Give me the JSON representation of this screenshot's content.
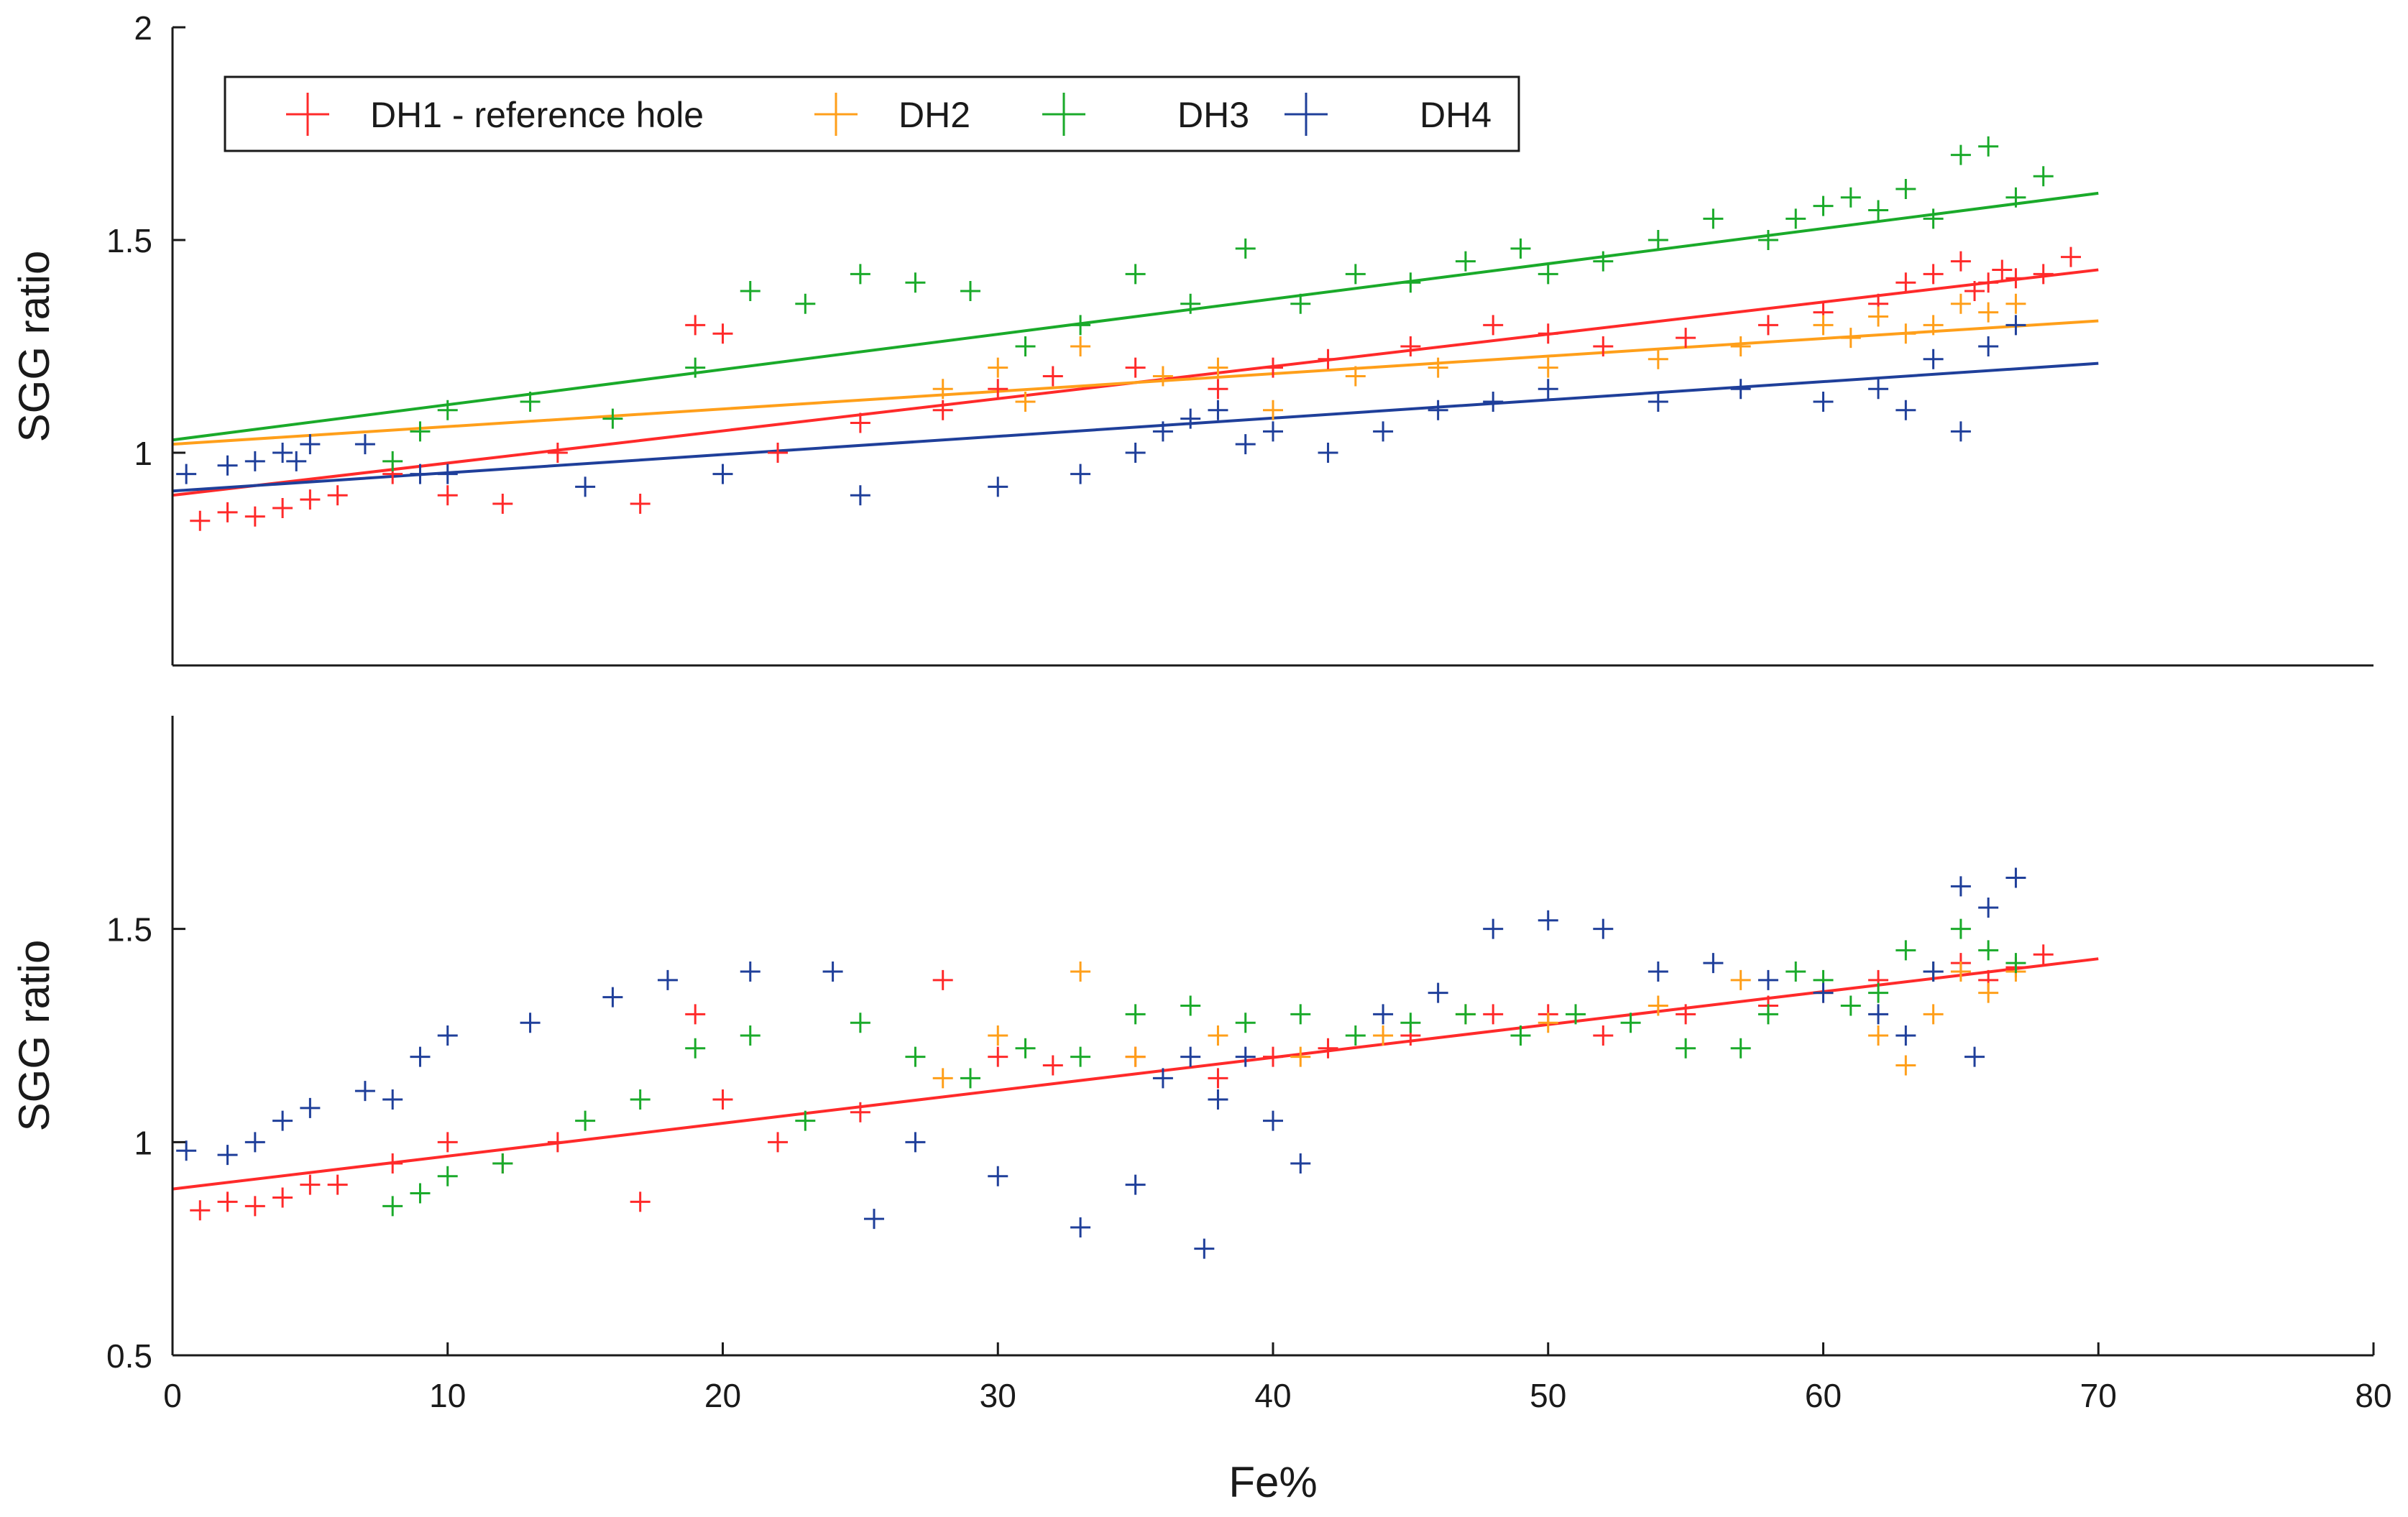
{
  "chart_data": [
    {
      "type": "scatter",
      "panel": "top",
      "xlabel": "",
      "ylabel": "SGG ratio",
      "xlim": [
        0,
        80
      ],
      "ylim": [
        0.5,
        2
      ],
      "yticks": [
        "1",
        "1.5",
        "2"
      ],
      "grid": false,
      "legend": {
        "placement": "top-left",
        "entries": [
          "DH1 - reference hole",
          "DH2",
          "DH3",
          "DH4"
        ]
      },
      "series": [
        {
          "name": "DH1 - reference hole",
          "color": "#ff2a2a",
          "marker": "plus",
          "points": [
            [
              1,
              0.84
            ],
            [
              2,
              0.86
            ],
            [
              3,
              0.85
            ],
            [
              4,
              0.87
            ],
            [
              5,
              0.89
            ],
            [
              6,
              0.9
            ],
            [
              8,
              0.95
            ],
            [
              10,
              0.9
            ],
            [
              12,
              0.88
            ],
            [
              14,
              1.0
            ],
            [
              17,
              0.88
            ],
            [
              19,
              1.3
            ],
            [
              20,
              1.28
            ],
            [
              22,
              1.0
            ],
            [
              25,
              1.07
            ],
            [
              28,
              1.1
            ],
            [
              30,
              1.15
            ],
            [
              32,
              1.18
            ],
            [
              35,
              1.2
            ],
            [
              38,
              1.15
            ],
            [
              40,
              1.2
            ],
            [
              42,
              1.22
            ],
            [
              45,
              1.25
            ],
            [
              48,
              1.3
            ],
            [
              50,
              1.28
            ],
            [
              52,
              1.25
            ],
            [
              55,
              1.27
            ],
            [
              58,
              1.3
            ],
            [
              60,
              1.33
            ],
            [
              62,
              1.35
            ],
            [
              63,
              1.4
            ],
            [
              64,
              1.42
            ],
            [
              65,
              1.45
            ],
            [
              65.5,
              1.38
            ],
            [
              66,
              1.4
            ],
            [
              66.5,
              1.43
            ],
            [
              67,
              1.41
            ],
            [
              68,
              1.42
            ],
            [
              69,
              1.46
            ]
          ],
          "trend": [
            [
              0,
              0.9
            ],
            [
              70,
              1.43
            ]
          ]
        },
        {
          "name": "DH2",
          "color": "#ff9f1a",
          "marker": "plus",
          "points": [
            [
              28,
              1.15
            ],
            [
              30,
              1.2
            ],
            [
              31,
              1.12
            ],
            [
              33,
              1.25
            ],
            [
              36,
              1.18
            ],
            [
              38,
              1.2
            ],
            [
              40,
              1.1
            ],
            [
              43,
              1.18
            ],
            [
              46,
              1.2
            ],
            [
              50,
              1.2
            ],
            [
              54,
              1.22
            ],
            [
              57,
              1.25
            ],
            [
              60,
              1.3
            ],
            [
              61,
              1.27
            ],
            [
              62,
              1.32
            ],
            [
              63,
              1.28
            ],
            [
              64,
              1.3
            ],
            [
              65,
              1.35
            ],
            [
              66,
              1.33
            ],
            [
              67,
              1.35
            ]
          ],
          "trend": [
            [
              0,
              1.02
            ],
            [
              70,
              1.31
            ]
          ]
        },
        {
          "name": "DH3",
          "color": "#1aaa2a",
          "marker": "plus",
          "points": [
            [
              8,
              0.98
            ],
            [
              9,
              1.05
            ],
            [
              10,
              1.1
            ],
            [
              13,
              1.12
            ],
            [
              16,
              1.08
            ],
            [
              19,
              1.2
            ],
            [
              21,
              1.38
            ],
            [
              23,
              1.35
            ],
            [
              25,
              1.42
            ],
            [
              27,
              1.4
            ],
            [
              29,
              1.38
            ],
            [
              31,
              1.25
            ],
            [
              33,
              1.3
            ],
            [
              35,
              1.42
            ],
            [
              37,
              1.35
            ],
            [
              39,
              1.48
            ],
            [
              41,
              1.35
            ],
            [
              43,
              1.42
            ],
            [
              45,
              1.4
            ],
            [
              47,
              1.45
            ],
            [
              49,
              1.48
            ],
            [
              50,
              1.42
            ],
            [
              52,
              1.45
            ],
            [
              54,
              1.5
            ],
            [
              56,
              1.55
            ],
            [
              58,
              1.5
            ],
            [
              59,
              1.55
            ],
            [
              60,
              1.58
            ],
            [
              61,
              1.6
            ],
            [
              62,
              1.57
            ],
            [
              63,
              1.62
            ],
            [
              64,
              1.55
            ],
            [
              65,
              1.7
            ],
            [
              66,
              1.72
            ],
            [
              67,
              1.6
            ],
            [
              68,
              1.65
            ]
          ],
          "trend": [
            [
              0,
              1.03
            ],
            [
              70,
              1.61
            ]
          ]
        },
        {
          "name": "DH4",
          "color": "#1f3f9a",
          "marker": "plus",
          "points": [
            [
              0.5,
              0.95
            ],
            [
              2,
              0.97
            ],
            [
              3,
              0.98
            ],
            [
              4,
              1.0
            ],
            [
              4.5,
              0.98
            ],
            [
              5,
              1.02
            ],
            [
              7,
              1.02
            ],
            [
              9,
              0.95
            ],
            [
              10,
              0.95
            ],
            [
              15,
              0.92
            ],
            [
              20,
              0.95
            ],
            [
              25,
              0.9
            ],
            [
              30,
              0.92
            ],
            [
              33,
              0.95
            ],
            [
              35,
              1.0
            ],
            [
              36,
              1.05
            ],
            [
              37,
              1.08
            ],
            [
              38,
              1.1
            ],
            [
              39,
              1.02
            ],
            [
              40,
              1.05
            ],
            [
              42,
              1.0
            ],
            [
              44,
              1.05
            ],
            [
              46,
              1.1
            ],
            [
              48,
              1.12
            ],
            [
              50,
              1.15
            ],
            [
              54,
              1.12
            ],
            [
              57,
              1.15
            ],
            [
              60,
              1.12
            ],
            [
              62,
              1.15
            ],
            [
              63,
              1.1
            ],
            [
              64,
              1.22
            ],
            [
              65,
              1.05
            ],
            [
              66,
              1.25
            ],
            [
              67,
              1.3
            ]
          ],
          "trend": [
            [
              0,
              0.91
            ],
            [
              70,
              1.21
            ]
          ]
        }
      ]
    },
    {
      "type": "scatter",
      "panel": "bottom",
      "xlabel": "Fe%",
      "ylabel": "SGG ratio",
      "xlim": [
        0,
        80
      ],
      "ylim": [
        0.5,
        2
      ],
      "xticks": [
        "0",
        "10",
        "20",
        "30",
        "40",
        "50",
        "60",
        "70",
        "80"
      ],
      "yticks": [
        "0.5",
        "1",
        "1.5"
      ],
      "grid": false,
      "series": [
        {
          "name": "DH1 - reference hole",
          "color": "#ff2a2a",
          "marker": "plus",
          "points": [
            [
              1,
              0.84
            ],
            [
              2,
              0.86
            ],
            [
              3,
              0.85
            ],
            [
              4,
              0.87
            ],
            [
              5,
              0.9
            ],
            [
              6,
              0.9
            ],
            [
              8,
              0.95
            ],
            [
              10,
              1.0
            ],
            [
              12,
              0.95
            ],
            [
              14,
              1.0
            ],
            [
              17,
              0.86
            ],
            [
              19,
              1.3
            ],
            [
              20,
              1.1
            ],
            [
              22,
              1.0
            ],
            [
              25,
              1.07
            ],
            [
              28,
              1.38
            ],
            [
              30,
              1.2
            ],
            [
              32,
              1.18
            ],
            [
              35,
              1.2
            ],
            [
              38,
              1.15
            ],
            [
              40,
              1.2
            ],
            [
              42,
              1.22
            ],
            [
              45,
              1.25
            ],
            [
              48,
              1.3
            ],
            [
              50,
              1.3
            ],
            [
              52,
              1.25
            ],
            [
              55,
              1.3
            ],
            [
              58,
              1.32
            ],
            [
              60,
              1.35
            ],
            [
              62,
              1.38
            ],
            [
              64,
              1.4
            ],
            [
              65,
              1.42
            ],
            [
              66,
              1.38
            ],
            [
              67,
              1.41
            ],
            [
              68,
              1.44
            ]
          ],
          "trend": [
            [
              0,
              0.89
            ],
            [
              70,
              1.43
            ]
          ]
        },
        {
          "name": "DH2",
          "color": "#ff9f1a",
          "marker": "plus",
          "points": [
            [
              28,
              1.15
            ],
            [
              30,
              1.25
            ],
            [
              33,
              1.4
            ],
            [
              35,
              1.2
            ],
            [
              38,
              1.25
            ],
            [
              41,
              1.2
            ],
            [
              44,
              1.25
            ],
            [
              47,
              1.3
            ],
            [
              50,
              1.28
            ],
            [
              54,
              1.32
            ],
            [
              57,
              1.38
            ],
            [
              60,
              1.35
            ],
            [
              62,
              1.25
            ],
            [
              63,
              1.18
            ],
            [
              64,
              1.3
            ],
            [
              65,
              1.4
            ],
            [
              66,
              1.35
            ],
            [
              67,
              1.4
            ]
          ]
        },
        {
          "name": "DH3",
          "color": "#1aaa2a",
          "marker": "plus",
          "points": [
            [
              8,
              0.85
            ],
            [
              9,
              0.88
            ],
            [
              10,
              0.92
            ],
            [
              12,
              0.95
            ],
            [
              15,
              1.05
            ],
            [
              17,
              1.1
            ],
            [
              19,
              1.22
            ],
            [
              21,
              1.25
            ],
            [
              23,
              1.05
            ],
            [
              25,
              1.28
            ],
            [
              27,
              1.2
            ],
            [
              29,
              1.15
            ],
            [
              31,
              1.22
            ],
            [
              33,
              1.2
            ],
            [
              35,
              1.3
            ],
            [
              37,
              1.32
            ],
            [
              39,
              1.28
            ],
            [
              41,
              1.3
            ],
            [
              43,
              1.25
            ],
            [
              45,
              1.28
            ],
            [
              47,
              1.3
            ],
            [
              49,
              1.25
            ],
            [
              51,
              1.3
            ],
            [
              53,
              1.28
            ],
            [
              55,
              1.22
            ],
            [
              57,
              1.22
            ],
            [
              58,
              1.3
            ],
            [
              59,
              1.4
            ],
            [
              60,
              1.38
            ],
            [
              61,
              1.32
            ],
            [
              62,
              1.35
            ],
            [
              63,
              1.45
            ],
            [
              64,
              1.4
            ],
            [
              65,
              1.5
            ],
            [
              66,
              1.45
            ],
            [
              67,
              1.42
            ]
          ]
        },
        {
          "name": "DH4",
          "color": "#1f3f9a",
          "marker": "plus",
          "points": [
            [
              0.5,
              0.98
            ],
            [
              2,
              0.97
            ],
            [
              3,
              1.0
            ],
            [
              4,
              1.05
            ],
            [
              5,
              1.08
            ],
            [
              7,
              1.12
            ],
            [
              8,
              1.1
            ],
            [
              9,
              1.2
            ],
            [
              10,
              1.25
            ],
            [
              13,
              1.28
            ],
            [
              16,
              1.34
            ],
            [
              18,
              1.38
            ],
            [
              21,
              1.4
            ],
            [
              24,
              1.4
            ],
            [
              25.5,
              0.82
            ],
            [
              27,
              1.0
            ],
            [
              30,
              0.92
            ],
            [
              33,
              0.8
            ],
            [
              35,
              0.9
            ],
            [
              36,
              1.15
            ],
            [
              37,
              1.2
            ],
            [
              37.5,
              0.75
            ],
            [
              38,
              1.1
            ],
            [
              39,
              1.2
            ],
            [
              40,
              1.05
            ],
            [
              41,
              0.95
            ],
            [
              44,
              1.3
            ],
            [
              46,
              1.35
            ],
            [
              48,
              1.5
            ],
            [
              50,
              1.52
            ],
            [
              52,
              1.5
            ],
            [
              54,
              1.4
            ],
            [
              56,
              1.42
            ],
            [
              58,
              1.38
            ],
            [
              60,
              1.35
            ],
            [
              62,
              1.3
            ],
            [
              63,
              1.25
            ],
            [
              64,
              1.4
            ],
            [
              65,
              1.6
            ],
            [
              65.5,
              1.2
            ],
            [
              66,
              1.55
            ],
            [
              67,
              1.62
            ]
          ]
        }
      ]
    }
  ]
}
